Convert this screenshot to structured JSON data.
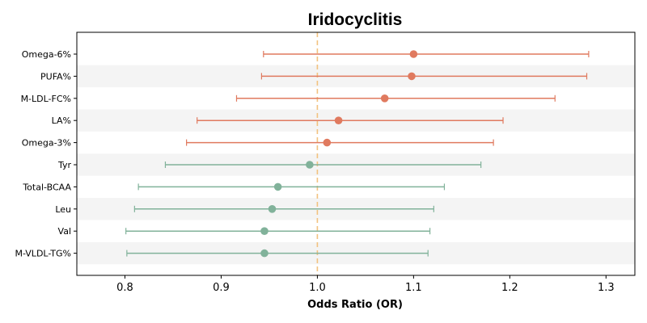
{
  "chart_data": {
    "type": "scatter",
    "title": "Iridocyclitis",
    "xlabel": "Odds Ratio (OR)",
    "ylabel": "",
    "xlim": [
      0.75,
      1.33
    ],
    "xticks": [
      "0.8",
      "0.9",
      "1.0",
      "1.1",
      "1.2",
      "1.3"
    ],
    "reference_line": 1.0,
    "reference_line_color": "#f2c27f",
    "grid": false,
    "band_color": "#f4f4f4",
    "colors": {
      "risk": "#e07a5f",
      "protective": "#81b29a"
    },
    "rows": [
      {
        "label": "Omega-6%",
        "or": 1.1,
        "lower": 0.944,
        "upper": 1.282,
        "group": "risk"
      },
      {
        "label": "PUFA%",
        "or": 1.098,
        "lower": 0.942,
        "upper": 1.28,
        "group": "risk"
      },
      {
        "label": "M-LDL-FC%",
        "or": 1.07,
        "lower": 0.916,
        "upper": 1.247,
        "group": "risk"
      },
      {
        "label": "LA%",
        "or": 1.022,
        "lower": 0.875,
        "upper": 1.193,
        "group": "risk"
      },
      {
        "label": "Omega-3%",
        "or": 1.01,
        "lower": 0.864,
        "upper": 1.183,
        "group": "risk"
      },
      {
        "label": "Tyr",
        "or": 0.992,
        "lower": 0.842,
        "upper": 1.17,
        "group": "protective"
      },
      {
        "label": "Total-BCAA",
        "or": 0.959,
        "lower": 0.814,
        "upper": 1.132,
        "group": "protective"
      },
      {
        "label": "Leu",
        "or": 0.953,
        "lower": 0.81,
        "upper": 1.121,
        "group": "protective"
      },
      {
        "label": "Val",
        "or": 0.945,
        "lower": 0.801,
        "upper": 1.117,
        "group": "protective"
      },
      {
        "label": "M-VLDL-TG%",
        "or": 0.945,
        "lower": 0.802,
        "upper": 1.115,
        "group": "protective"
      }
    ]
  }
}
